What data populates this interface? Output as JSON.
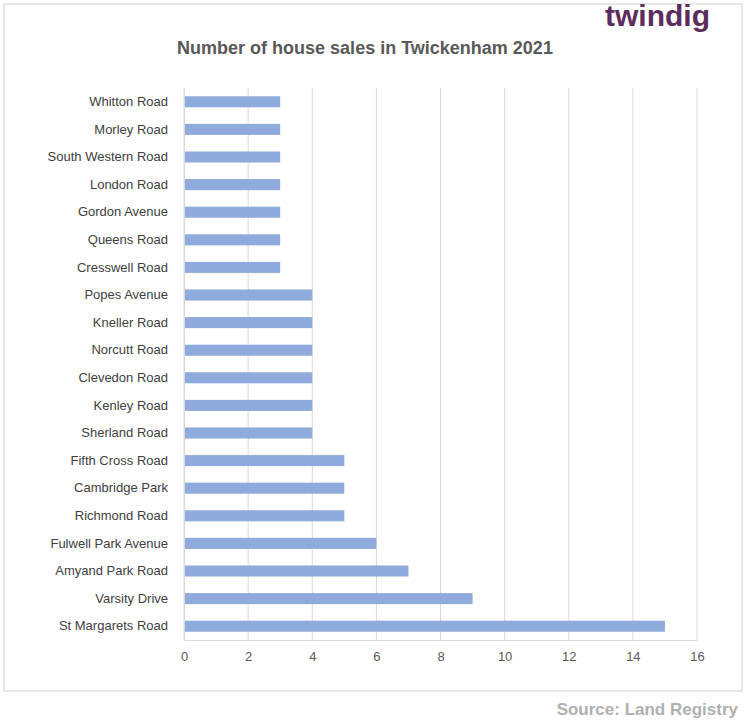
{
  "chart_data": {
    "type": "bar",
    "orientation": "horizontal",
    "title": "Number of house sales in Twickenham 2021",
    "annotations": [
      "twindig",
      "Source: Land Registry"
    ],
    "categories": [
      "Whitton Road",
      "Morley Road",
      "South Western Road",
      "London Road",
      "Gordon Avenue",
      "Queens Road",
      "Cresswell Road",
      "Popes Avenue",
      "Kneller Road",
      "Norcutt Road",
      "Clevedon Road",
      "Kenley Road",
      "Sherland Road",
      "Fifth Cross Road",
      "Cambridge Park",
      "Richmond Road",
      "Fulwell Park Avenue",
      "Amyand Park Road",
      "Varsity Drive",
      "St Margarets Road"
    ],
    "values": [
      3,
      3,
      3,
      3,
      3,
      3,
      3,
      4,
      4,
      4,
      4,
      4,
      4,
      5,
      5,
      5,
      6,
      7,
      9,
      15
    ],
    "color": "#8faadc",
    "xlim": [
      0,
      16
    ],
    "xticks": [
      0,
      2,
      4,
      6,
      8,
      10,
      12,
      14,
      16
    ],
    "grid": true
  }
}
